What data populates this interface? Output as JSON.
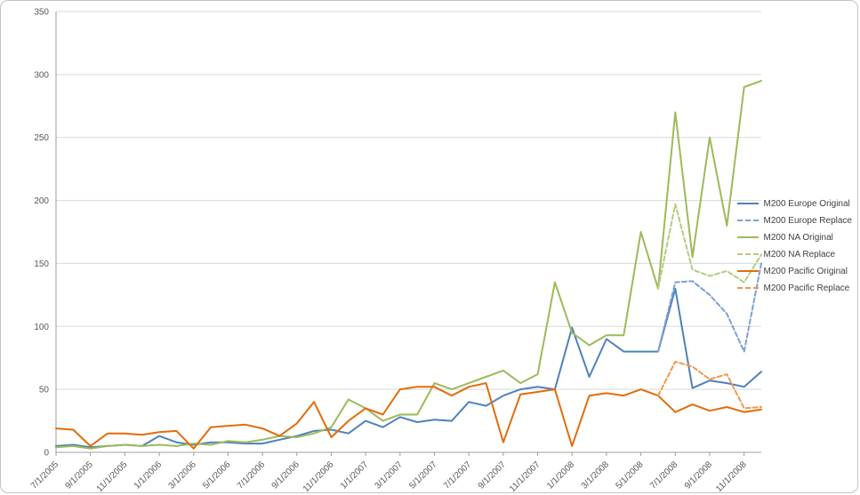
{
  "window": {
    "background": "#ffffff",
    "frame_border": "#c3c3c3"
  },
  "colors": {
    "gridline": "#d9d9d9",
    "axis_line": "#9d9d9d",
    "axis_text": "#595959",
    "legend_text": "#404040",
    "plot_background": "#ffffff"
  },
  "chart_data": {
    "type": "line",
    "title": "",
    "xlabel": "",
    "ylabel": "",
    "grid": "horizontal",
    "legend_position": "right",
    "y_axis": {
      "min": 0,
      "max": 350,
      "step": 50,
      "tick_labels": [
        "0",
        "50",
        "100",
        "150",
        "200",
        "250",
        "300",
        "350"
      ]
    },
    "x_tick_labels": [
      "7/1/2005",
      "9/1/2005",
      "11/1/2005",
      "1/1/2006",
      "3/1/2006",
      "5/1/2006",
      "7/1/2006",
      "9/1/2006",
      "11/1/2006",
      "1/1/2007",
      "3/1/2007",
      "5/1/2007",
      "7/1/2007",
      "9/1/2007",
      "11/1/2007",
      "1/1/2008",
      "3/1/2008",
      "5/1/2008",
      "7/1/2008",
      "9/1/2008",
      "11/1/2008"
    ],
    "categories": [
      "7/1/2005",
      "8/1/2005",
      "9/1/2005",
      "10/1/2005",
      "11/1/2005",
      "12/1/2005",
      "1/1/2006",
      "2/1/2006",
      "3/1/2006",
      "4/1/2006",
      "5/1/2006",
      "6/1/2006",
      "7/1/2006",
      "8/1/2006",
      "9/1/2006",
      "10/1/2006",
      "11/1/2006",
      "12/1/2006",
      "1/1/2007",
      "2/1/2007",
      "3/1/2007",
      "4/1/2007",
      "5/1/2007",
      "6/1/2007",
      "7/1/2007",
      "8/1/2007",
      "9/1/2007",
      "10/1/2007",
      "11/1/2007",
      "12/1/2007",
      "1/1/2008",
      "2/1/2008",
      "3/1/2008",
      "4/1/2008",
      "5/1/2008",
      "6/1/2008",
      "7/1/2008",
      "8/1/2008",
      "9/1/2008",
      "10/1/2008",
      "11/1/2008",
      "12/1/2008"
    ],
    "series": [
      {
        "name": "M200 Europe Original",
        "color": "#4F81BD",
        "style": "solid",
        "values": [
          5,
          6,
          4,
          5,
          6,
          5,
          13,
          8,
          6,
          8,
          8,
          7,
          7,
          10,
          13,
          17,
          18,
          15,
          25,
          20,
          28,
          24,
          26,
          25,
          40,
          37,
          45,
          50,
          52,
          50,
          99,
          60,
          90,
          80,
          80,
          80,
          130,
          51,
          57,
          55,
          52,
          64
        ]
      },
      {
        "name": "M200 Europe Replace",
        "color": "#7CA1D2",
        "style": "dashed",
        "values": [
          null,
          null,
          null,
          null,
          null,
          null,
          null,
          null,
          null,
          null,
          null,
          null,
          null,
          null,
          null,
          null,
          null,
          null,
          null,
          null,
          null,
          null,
          null,
          null,
          null,
          null,
          null,
          null,
          null,
          null,
          null,
          null,
          null,
          null,
          null,
          80,
          135,
          136,
          125,
          110,
          80,
          150
        ]
      },
      {
        "name": "M200 NA Original",
        "color": "#9BBB59",
        "style": "solid",
        "values": [
          4,
          5,
          3,
          5,
          6,
          5,
          6,
          5,
          7,
          6,
          9,
          8,
          10,
          13,
          12,
          15,
          20,
          42,
          35,
          25,
          30,
          30,
          55,
          50,
          55,
          60,
          65,
          55,
          62,
          135,
          95,
          85,
          93,
          93,
          175,
          130,
          270,
          155,
          250,
          180,
          290,
          295
        ]
      },
      {
        "name": "M200 NA Replace",
        "color": "#B3CC7E",
        "style": "dashed",
        "values": [
          null,
          null,
          null,
          null,
          null,
          null,
          null,
          null,
          null,
          null,
          null,
          null,
          null,
          null,
          null,
          null,
          null,
          null,
          null,
          null,
          null,
          null,
          null,
          null,
          null,
          null,
          null,
          null,
          null,
          null,
          null,
          null,
          null,
          null,
          null,
          130,
          197,
          145,
          140,
          144,
          135,
          157
        ]
      },
      {
        "name": "M200 Pacific Original",
        "color": "#E36C09",
        "style": "solid",
        "values": [
          19,
          18,
          5,
          15,
          15,
          14,
          16,
          17,
          3,
          20,
          21,
          22,
          19,
          13,
          23,
          40,
          12,
          25,
          35,
          30,
          50,
          52,
          52,
          45,
          52,
          55,
          8,
          46,
          48,
          50,
          5,
          45,
          47,
          45,
          50,
          45,
          32,
          38,
          33,
          36,
          32,
          34
        ]
      },
      {
        "name": "M200 Pacific Replace",
        "color": "#F79646",
        "style": "dashed",
        "values": [
          null,
          null,
          null,
          null,
          null,
          null,
          null,
          null,
          null,
          null,
          null,
          null,
          null,
          null,
          null,
          null,
          null,
          null,
          null,
          null,
          null,
          null,
          null,
          null,
          null,
          null,
          null,
          null,
          null,
          null,
          null,
          null,
          null,
          null,
          null,
          45,
          72,
          68,
          58,
          62,
          35,
          36
        ]
      }
    ]
  }
}
